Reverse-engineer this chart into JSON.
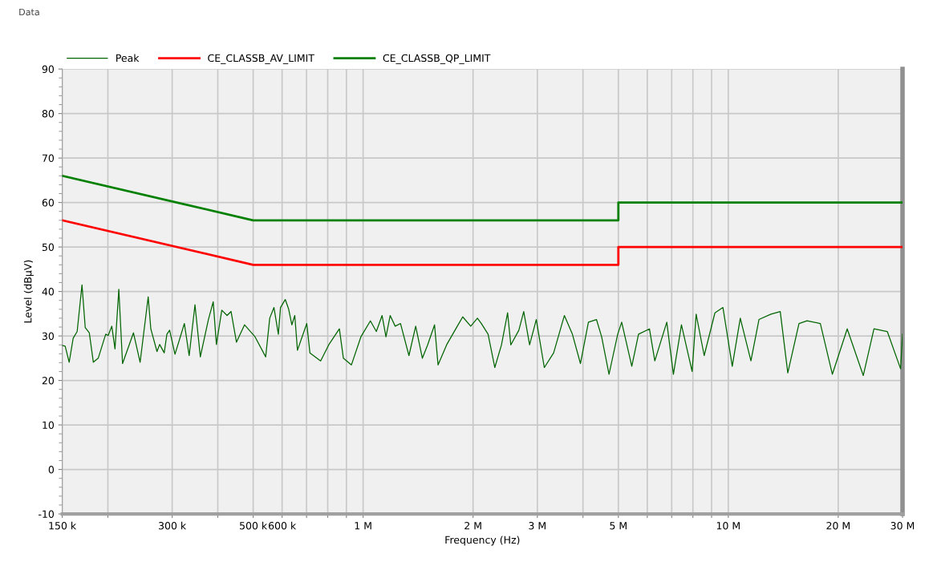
{
  "chart_data": {
    "type": "line",
    "xlabel": "Frequency (Hz)",
    "ylabel": "Level (dBµV)",
    "annotations": [
      "Data"
    ],
    "log": "x",
    "xlim": [
      150000,
      30000000
    ],
    "xticks": [
      {
        "value": 150000,
        "label": "150 k"
      },
      {
        "value": 200000,
        "label": null
      },
      {
        "value": 300000,
        "label": "300 k"
      },
      {
        "value": 400000,
        "label": null
      },
      {
        "value": 500000,
        "label": "500 k"
      },
      {
        "value": 600000,
        "label": "600 k"
      },
      {
        "value": 700000,
        "label": null
      },
      {
        "value": 800000,
        "label": null
      },
      {
        "value": 900000,
        "label": null
      },
      {
        "value": 1000000,
        "label": "1 M"
      },
      {
        "value": 2000000,
        "label": "2 M"
      },
      {
        "value": 3000000,
        "label": "3 M"
      },
      {
        "value": 4000000,
        "label": null
      },
      {
        "value": 5000000,
        "label": "5 M"
      },
      {
        "value": 6000000,
        "label": null
      },
      {
        "value": 7000000,
        "label": null
      },
      {
        "value": 8000000,
        "label": null
      },
      {
        "value": 9000000,
        "label": null
      },
      {
        "value": 10000000,
        "label": "10 M"
      },
      {
        "value": 20000000,
        "label": "20 M"
      },
      {
        "value": 30000000,
        "label": "30 M"
      }
    ],
    "ylim": [
      -10,
      90
    ],
    "yticks": [
      -10,
      0,
      10,
      20,
      30,
      40,
      50,
      60,
      70,
      80,
      90
    ],
    "grid": true,
    "legend": "top left",
    "series": [
      {
        "name": "Peak",
        "color": "#006400",
        "line_style": "solid",
        "x": [
          150000,
          152800,
          156700,
          160700,
          164800,
          169900,
          173400,
          177900,
          182500,
          188200,
          197300,
          200400,
          205000,
          209200,
          214300,
          219400,
          235000,
          245100,
          257900,
          262200,
          272600,
          277200,
          285300,
          290200,
          295200,
          305400,
          324000,
          333900,
          346400,
          358300,
          377000,
          388600,
          396500,
          410200,
          424100,
          434900,
          450000,
          473400,
          506000,
          541000,
          555000,
          570000,
          586000,
          594000,
          612000,
          625000,
          638000,
          650000,
          661000,
          701000,
          715000,
          765000,
          805000,
          861000,
          883000,
          929000,
          986000,
          1047000,
          1087000,
          1127000,
          1155000,
          1186000,
          1224000,
          1266000,
          1335000,
          1393000,
          1453000,
          1502000,
          1569000,
          1604000,
          1693000,
          1811000,
          1874000,
          1971000,
          2056000,
          2108000,
          2199000,
          2294000,
          2393000,
          2487000,
          2538000,
          2670000,
          2753000,
          2857000,
          2980000,
          3135000,
          3325000,
          3557000,
          3742000,
          3937000,
          4140000,
          4355000,
          4500000,
          4714000,
          4979000,
          5106000,
          5442000,
          5678000,
          6083000,
          6292000,
          6785000,
          7075000,
          7443000,
          7961000,
          8165000,
          8590000,
          9192000,
          9669000,
          10253000,
          10786000,
          11534000,
          12134000,
          13086000,
          13876000,
          14553000,
          15616000,
          16432000,
          17868000,
          19276000,
          21167000,
          23425000,
          25057000,
          27254000,
          29641000,
          30000000
        ],
        "values": [
          27.9,
          27.7,
          24.1,
          29.5,
          31.0,
          41.5,
          31.9,
          30.7,
          24.1,
          25.0,
          30.4,
          30.1,
          32.2,
          27.1,
          40.5,
          23.8,
          30.7,
          24.1,
          38.8,
          31.6,
          26.5,
          28.1,
          26.2,
          30.4,
          31.3,
          25.9,
          32.8,
          25.6,
          37.0,
          25.3,
          33.7,
          37.7,
          28.1,
          35.8,
          34.6,
          35.5,
          28.6,
          32.5,
          29.8,
          25.3,
          34.0,
          36.4,
          30.4,
          36.4,
          38.2,
          36.1,
          32.5,
          34.6,
          26.8,
          32.8,
          26.2,
          24.4,
          28.0,
          31.6,
          25.0,
          23.5,
          29.8,
          33.4,
          31.0,
          34.6,
          29.8,
          34.6,
          32.2,
          32.8,
          25.6,
          32.2,
          25.0,
          28.0,
          32.5,
          23.5,
          28.0,
          32.2,
          34.3,
          32.2,
          34.0,
          32.8,
          30.4,
          22.9,
          28.0,
          35.2,
          28.0,
          31.3,
          35.5,
          28.0,
          33.7,
          22.9,
          26.2,
          34.6,
          30.4,
          23.8,
          33.1,
          33.7,
          29.8,
          21.4,
          30.4,
          33.1,
          23.2,
          30.4,
          31.6,
          24.4,
          33.1,
          21.4,
          32.5,
          22.0,
          34.9,
          25.6,
          35.2,
          36.4,
          23.2,
          34.0,
          24.4,
          33.7,
          34.9,
          35.5,
          21.7,
          32.8,
          33.4,
          32.8,
          21.4,
          31.6,
          21.1,
          31.6,
          31.0,
          22.6,
          30.4
        ]
      },
      {
        "name": "CE_CLASSB_AV_LIMIT",
        "color": "#ff0000",
        "line_style": "solid",
        "x": [
          150000,
          500000,
          5000000,
          5000000,
          30000000
        ],
        "values": [
          56,
          46,
          46,
          50,
          50
        ]
      },
      {
        "name": "CE_CLASSB_QP_LIMIT",
        "color": "#008000",
        "line_style": "solid",
        "x": [
          150000,
          500000,
          5000000,
          5000000,
          30000000
        ],
        "values": [
          66,
          56,
          56,
          60,
          60
        ]
      }
    ]
  }
}
